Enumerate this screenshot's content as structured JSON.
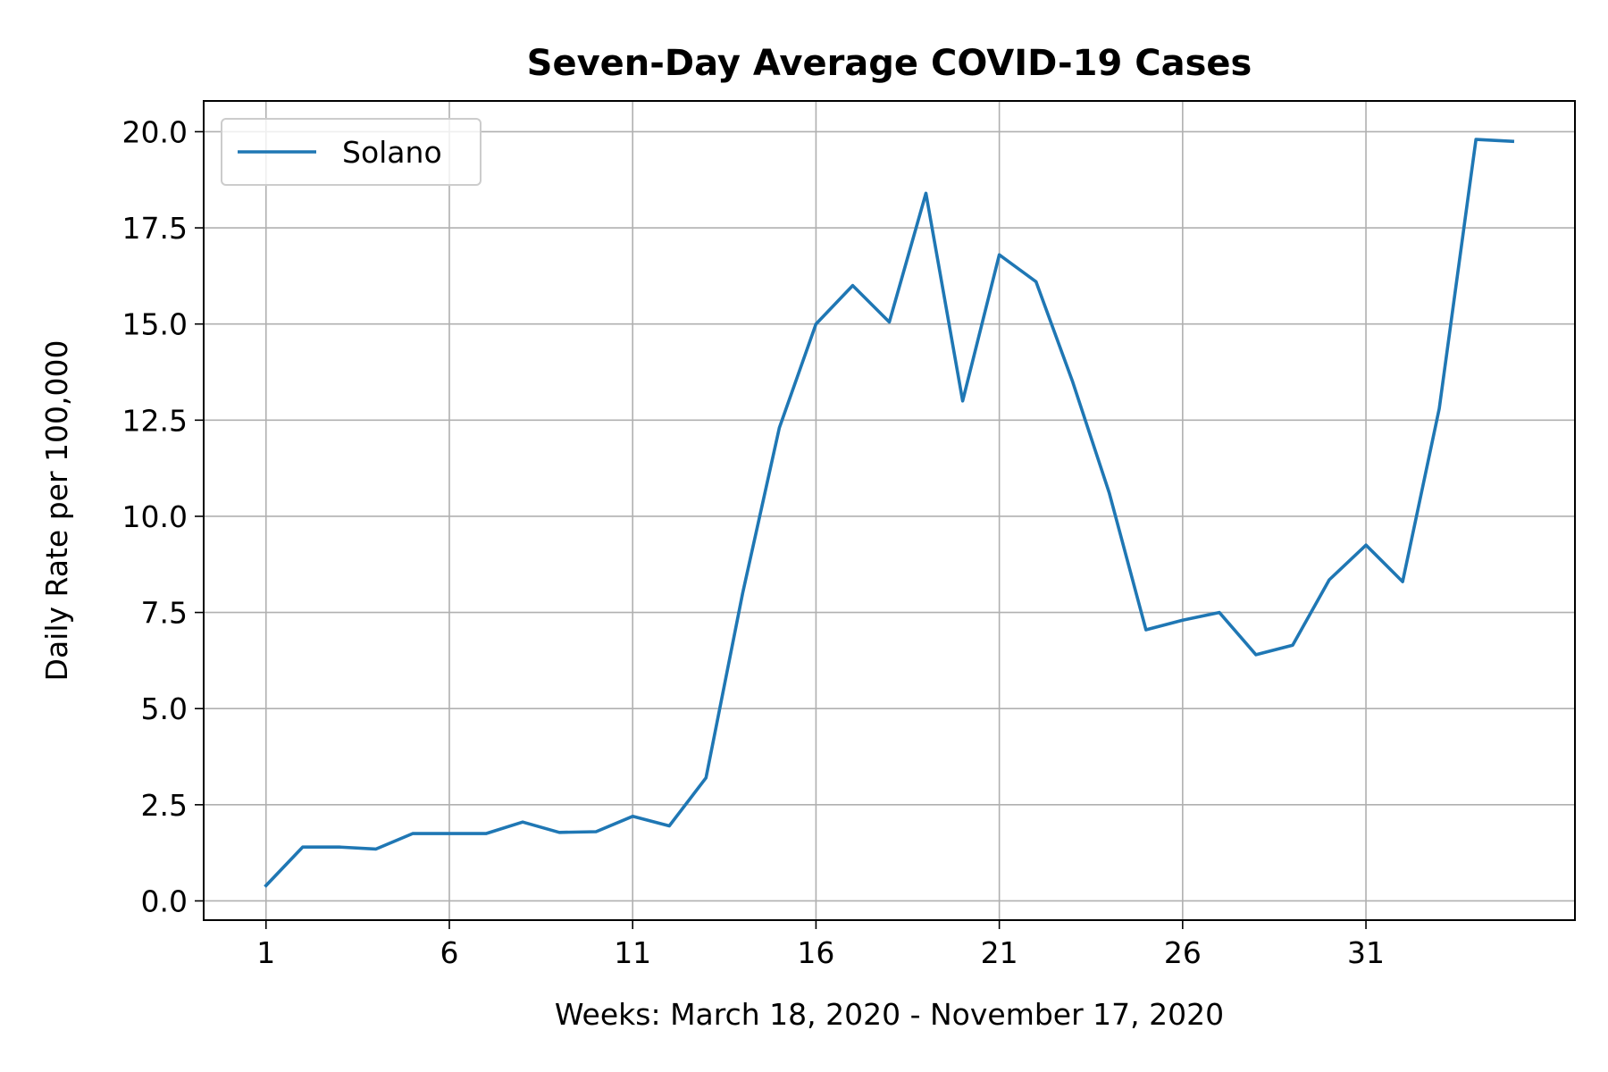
{
  "chart_data": {
    "type": "line",
    "title": "Seven-Day Average COVID-19 Cases",
    "xlabel": "Weeks: March 18, 2020 - November 17, 2020",
    "ylabel": "Daily Rate per 100,000",
    "xlim": [
      -0.7,
      36.7
    ],
    "ylim": [
      -0.5,
      20.8
    ],
    "xticks": [
      1,
      6,
      11,
      16,
      21,
      26,
      31
    ],
    "xtick_labels": [
      "1",
      "6",
      "11",
      "16",
      "21",
      "26",
      "31"
    ],
    "yticks": [
      0,
      2.5,
      5,
      7.5,
      10,
      12.5,
      15,
      17.5,
      20
    ],
    "ytick_labels": [
      "0.0",
      "2.5",
      "5.0",
      "7.5",
      "10.0",
      "12.5",
      "15.0",
      "17.5",
      "20.0"
    ],
    "grid": true,
    "legend_position": "upper-left",
    "series": [
      {
        "name": "Solano",
        "color": "#1f77b4",
        "x": [
          1,
          2,
          3,
          4,
          5,
          6,
          7,
          8,
          9,
          10,
          11,
          12,
          13,
          14,
          15,
          16,
          17,
          18,
          19,
          20,
          21,
          22,
          23,
          24,
          25,
          26,
          27,
          28,
          29,
          30,
          31,
          32,
          33,
          34,
          35
        ],
        "values": [
          0.4,
          1.4,
          1.4,
          1.35,
          1.75,
          1.75,
          1.75,
          2.05,
          1.78,
          1.8,
          2.2,
          1.95,
          3.2,
          8.0,
          12.3,
          15.0,
          16.0,
          15.05,
          18.4,
          13.0,
          16.8,
          16.1,
          13.5,
          10.6,
          7.05,
          7.3,
          7.5,
          6.4,
          6.65,
          8.35,
          9.25,
          8.3,
          12.8,
          19.8,
          19.75
        ]
      }
    ]
  }
}
